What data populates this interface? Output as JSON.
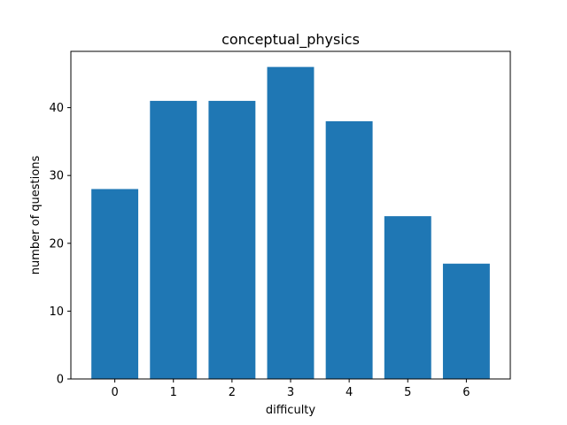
{
  "chart_data": {
    "type": "bar",
    "title": "conceptual_physics",
    "xlabel": "difficulty",
    "ylabel": "number of questions",
    "categories": [
      "0",
      "1",
      "2",
      "3",
      "4",
      "5",
      "6"
    ],
    "values": [
      28,
      41,
      41,
      46,
      38,
      24,
      17
    ],
    "ylim": [
      0,
      48.3
    ],
    "yticks": [
      "0",
      "10",
      "20",
      "30",
      "40"
    ],
    "bar_color": "#1f77b4",
    "grid": false,
    "legend": "none"
  }
}
